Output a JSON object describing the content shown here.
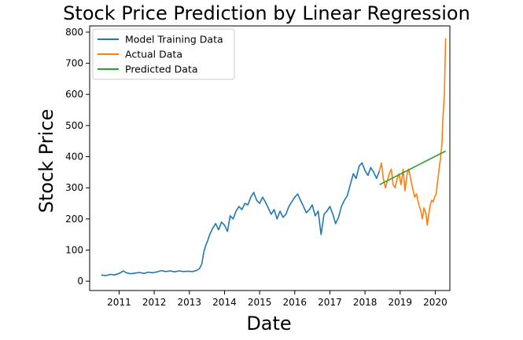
{
  "chart_data": {
    "type": "line",
    "title": "Stock Price Prediction by Linear Regression",
    "xlabel": "Date",
    "ylabel": "Stock Price",
    "xlim": [
      "2010-03-01",
      "2020-06-01"
    ],
    "ylim": [
      -30,
      820
    ],
    "x_ticks": [
      "2011",
      "2012",
      "2013",
      "2014",
      "2015",
      "2016",
      "2017",
      "2018",
      "2019",
      "2020"
    ],
    "y_ticks": [
      0,
      100,
      200,
      300,
      400,
      500,
      600,
      700,
      800
    ],
    "grid": false,
    "legend_position": "top-left",
    "series": [
      {
        "name": "Model Training Data",
        "color": "#1f77b4",
        "points": [
          [
            "2010-07-01",
            20
          ],
          [
            "2010-08-15",
            18
          ],
          [
            "2010-10-01",
            22
          ],
          [
            "2010-11-15",
            20
          ],
          [
            "2011-01-01",
            25
          ],
          [
            "2011-02-15",
            33
          ],
          [
            "2011-03-15",
            27
          ],
          [
            "2011-05-01",
            24
          ],
          [
            "2011-06-15",
            26
          ],
          [
            "2011-08-01",
            28
          ],
          [
            "2011-09-15",
            25
          ],
          [
            "2011-11-01",
            29
          ],
          [
            "2011-12-15",
            27
          ],
          [
            "2012-02-01",
            30
          ],
          [
            "2012-03-15",
            34
          ],
          [
            "2012-05-01",
            31
          ],
          [
            "2012-06-15",
            33
          ],
          [
            "2012-08-01",
            30
          ],
          [
            "2012-09-15",
            33
          ],
          [
            "2012-11-01",
            31
          ],
          [
            "2012-12-15",
            32
          ],
          [
            "2013-02-01",
            31
          ],
          [
            "2013-03-15",
            34
          ],
          [
            "2013-04-15",
            40
          ],
          [
            "2013-05-10",
            55
          ],
          [
            "2013-06-01",
            95
          ],
          [
            "2013-06-20",
            115
          ],
          [
            "2013-07-10",
            130
          ],
          [
            "2013-08-01",
            150
          ],
          [
            "2013-09-01",
            170
          ],
          [
            "2013-10-01",
            185
          ],
          [
            "2013-11-01",
            165
          ],
          [
            "2013-12-01",
            190
          ],
          [
            "2014-01-01",
            180
          ],
          [
            "2014-02-01",
            160
          ],
          [
            "2014-03-01",
            210
          ],
          [
            "2014-04-01",
            200
          ],
          [
            "2014-05-01",
            225
          ],
          [
            "2014-06-01",
            240
          ],
          [
            "2014-07-01",
            230
          ],
          [
            "2014-08-01",
            250
          ],
          [
            "2014-09-01",
            245
          ],
          [
            "2014-10-01",
            270
          ],
          [
            "2014-11-01",
            285
          ],
          [
            "2014-12-01",
            260
          ],
          [
            "2015-01-01",
            250
          ],
          [
            "2015-02-01",
            270
          ],
          [
            "2015-03-01",
            255
          ],
          [
            "2015-04-01",
            235
          ],
          [
            "2015-05-01",
            215
          ],
          [
            "2015-06-01",
            230
          ],
          [
            "2015-07-01",
            200
          ],
          [
            "2015-08-01",
            225
          ],
          [
            "2015-09-01",
            205
          ],
          [
            "2015-10-01",
            215
          ],
          [
            "2015-11-01",
            240
          ],
          [
            "2015-12-01",
            255
          ],
          [
            "2016-01-01",
            270
          ],
          [
            "2016-02-01",
            280
          ],
          [
            "2016-03-01",
            260
          ],
          [
            "2016-04-01",
            240
          ],
          [
            "2016-05-01",
            220
          ],
          [
            "2016-06-01",
            230
          ],
          [
            "2016-07-01",
            245
          ],
          [
            "2016-08-01",
            210
          ],
          [
            "2016-09-01",
            225
          ],
          [
            "2016-10-01",
            150
          ],
          [
            "2016-11-01",
            215
          ],
          [
            "2016-12-01",
            225
          ],
          [
            "2017-01-01",
            240
          ],
          [
            "2017-02-01",
            215
          ],
          [
            "2017-03-01",
            185
          ],
          [
            "2017-04-01",
            205
          ],
          [
            "2017-05-01",
            240
          ],
          [
            "2017-06-01",
            260
          ],
          [
            "2017-07-01",
            275
          ],
          [
            "2017-08-01",
            310
          ],
          [
            "2017-09-01",
            345
          ],
          [
            "2017-10-01",
            330
          ],
          [
            "2017-11-01",
            370
          ],
          [
            "2017-12-01",
            380
          ],
          [
            "2018-01-01",
            355
          ],
          [
            "2018-02-01",
            340
          ],
          [
            "2018-03-01",
            365
          ],
          [
            "2018-04-01",
            350
          ],
          [
            "2018-05-01",
            330
          ],
          [
            "2018-06-01",
            355
          ]
        ]
      },
      {
        "name": "Actual Data",
        "color": "#ff7f0e",
        "points": [
          [
            "2018-06-01",
            355
          ],
          [
            "2018-06-20",
            380
          ],
          [
            "2018-07-10",
            330
          ],
          [
            "2018-08-01",
            300
          ],
          [
            "2018-08-20",
            320
          ],
          [
            "2018-09-10",
            345
          ],
          [
            "2018-10-01",
            360
          ],
          [
            "2018-10-20",
            310
          ],
          [
            "2018-11-10",
            300
          ],
          [
            "2018-12-01",
            330
          ],
          [
            "2018-12-20",
            345
          ],
          [
            "2019-01-10",
            310
          ],
          [
            "2019-02-01",
            360
          ],
          [
            "2019-02-20",
            290
          ],
          [
            "2019-03-15",
            345
          ],
          [
            "2019-04-01",
            360
          ],
          [
            "2019-04-20",
            330
          ],
          [
            "2019-05-10",
            300
          ],
          [
            "2019-06-01",
            270
          ],
          [
            "2019-06-20",
            280
          ],
          [
            "2019-07-15",
            245
          ],
          [
            "2019-08-01",
            230
          ],
          [
            "2019-08-20",
            200
          ],
          [
            "2019-09-05",
            235
          ],
          [
            "2019-09-25",
            220
          ],
          [
            "2019-10-10",
            180
          ],
          [
            "2019-10-25",
            215
          ],
          [
            "2019-11-10",
            245
          ],
          [
            "2019-11-25",
            260
          ],
          [
            "2019-12-10",
            255
          ],
          [
            "2019-12-25",
            270
          ],
          [
            "2020-01-10",
            280
          ],
          [
            "2020-01-25",
            320
          ],
          [
            "2020-02-10",
            360
          ],
          [
            "2020-02-25",
            395
          ],
          [
            "2020-03-10",
            440
          ],
          [
            "2020-03-20",
            520
          ],
          [
            "2020-03-28",
            560
          ],
          [
            "2020-04-05",
            600
          ],
          [
            "2020-04-12",
            700
          ],
          [
            "2020-04-18",
            780
          ]
        ]
      },
      {
        "name": "Predicted Data",
        "color": "#2ca02c",
        "points": [
          [
            "2018-06-01",
            310
          ],
          [
            "2020-04-18",
            418
          ]
        ]
      }
    ]
  }
}
